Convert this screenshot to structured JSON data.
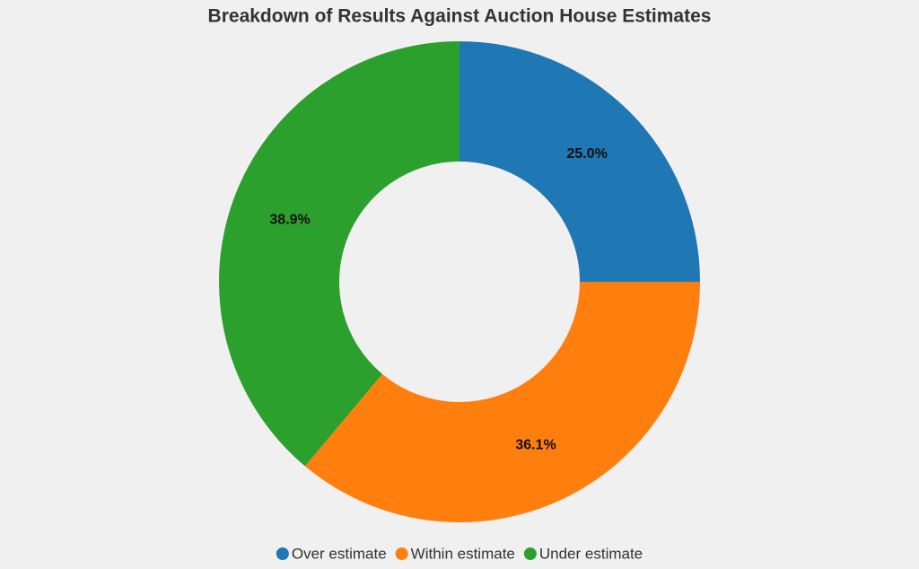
{
  "chart_data": {
    "type": "donut",
    "title": "Breakdown of Results Against Auction House Estimates",
    "categories": [
      "Over estimate",
      "Within estimate",
      "Under estimate"
    ],
    "values": [
      25.0,
      36.1,
      38.9
    ],
    "value_labels": [
      "25.0%",
      "36.1%",
      "38.9%"
    ],
    "colors": [
      "#1f77b4",
      "#ff7f0e",
      "#2ca02c"
    ],
    "legend": "bottom"
  }
}
